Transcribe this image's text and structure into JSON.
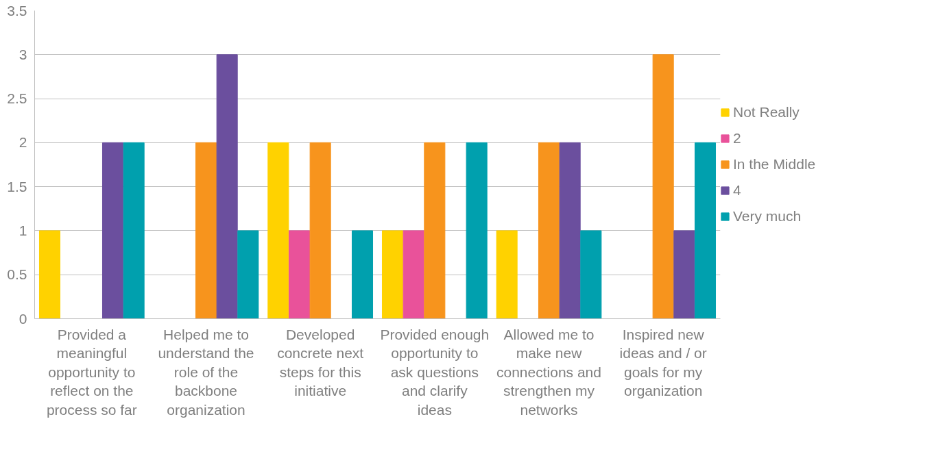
{
  "chart_data": {
    "type": "bar",
    "categories": [
      "Provided a meaningful opportunity to reflect on the process so far",
      "Helped me to understand the role of the backbone organization",
      "Developed concrete next steps for this initiative",
      "Provided enough opportunity to ask questions and clarify ideas",
      "Allowed me to make new connections and strengthen my networks",
      "Inspired new ideas and / or goals for my organization"
    ],
    "series": [
      {
        "name": "Not Really",
        "color": "#ffd200",
        "values": [
          1,
          0,
          2,
          1,
          1,
          0
        ]
      },
      {
        "name": "2",
        "color": "#e9529a",
        "values": [
          0,
          0,
          1,
          1,
          0,
          0
        ]
      },
      {
        "name": "In the Middle",
        "color": "#f7941d",
        "values": [
          0,
          2,
          2,
          2,
          2,
          3
        ]
      },
      {
        "name": "4",
        "color": "#6b4f9e",
        "values": [
          2,
          3,
          0,
          0,
          2,
          1
        ]
      },
      {
        "name": "Very much",
        "color": "#00a0ae",
        "values": [
          2,
          1,
          1,
          2,
          1,
          2
        ]
      }
    ],
    "ylim": [
      0,
      3.5
    ],
    "yticks": [
      0,
      0.5,
      1,
      1.5,
      2,
      2.5,
      3,
      3.5
    ],
    "grid": "y",
    "legend": "right"
  }
}
